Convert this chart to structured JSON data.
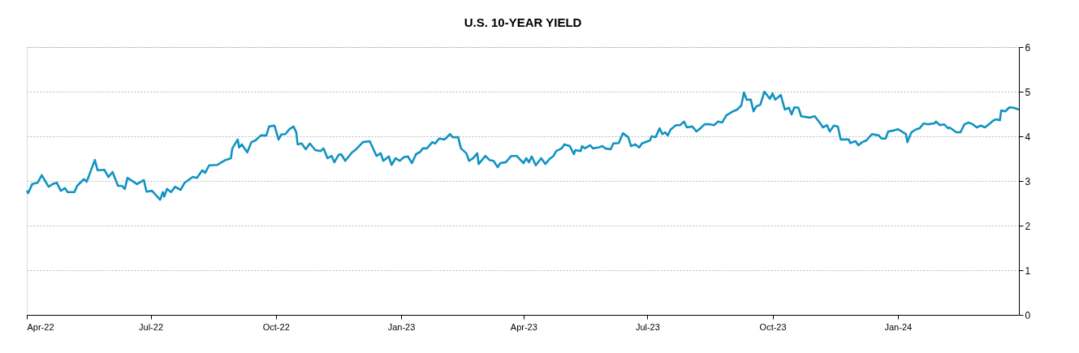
{
  "chart_data": {
    "type": "line",
    "title": "U.S. 10-YEAR YIELD",
    "x": [
      "2022-04-01",
      "2022-04-02",
      "2022-04-05",
      "2022-04-09",
      "2022-04-12",
      "2022-04-17",
      "2022-04-20",
      "2022-04-23",
      "2022-04-26",
      "2022-04-29",
      "2022-05-01",
      "2022-05-06",
      "2022-05-08",
      "2022-05-13",
      "2022-05-15",
      "2022-05-21",
      "2022-05-23",
      "2022-05-28",
      "2022-05-31",
      "2022-06-03",
      "2022-06-07",
      "2022-06-10",
      "2022-06-12",
      "2022-06-14",
      "2022-06-21",
      "2022-06-26",
      "2022-06-28",
      "2022-07-02",
      "2022-07-08",
      "2022-07-10",
      "2022-07-11",
      "2022-07-13",
      "2022-07-16",
      "2022-07-19",
      "2022-07-23",
      "2022-07-26",
      "2022-08-01",
      "2022-08-04",
      "2022-08-08",
      "2022-08-10",
      "2022-08-13",
      "2022-08-19",
      "2022-08-25",
      "2022-08-29",
      "2022-08-30",
      "2022-09-03",
      "2022-09-04",
      "2022-09-06",
      "2022-09-10",
      "2022-09-13",
      "2022-09-16",
      "2022-09-20",
      "2022-09-24",
      "2022-09-26",
      "2022-09-30",
      "2022-10-03",
      "2022-10-05",
      "2022-10-08",
      "2022-10-11",
      "2022-10-14",
      "2022-10-16",
      "2022-10-17",
      "2022-10-20",
      "2022-10-23",
      "2022-10-26",
      "2022-10-30",
      "2022-11-03",
      "2022-11-05",
      "2022-11-08",
      "2022-11-11",
      "2022-11-13",
      "2022-11-16",
      "2022-11-18",
      "2022-11-21",
      "2022-11-26",
      "2022-11-29",
      "2022-12-04",
      "2022-12-09",
      "2022-12-12",
      "2022-12-14",
      "2022-12-17",
      "2022-12-19",
      "2022-12-23",
      "2022-12-25",
      "2022-12-28",
      "2022-12-31",
      "2023-01-03",
      "2023-01-06",
      "2023-01-09",
      "2023-01-12",
      "2023-01-15",
      "2023-01-17",
      "2023-01-20",
      "2023-01-24",
      "2023-01-26",
      "2023-01-29",
      "2023-02-02",
      "2023-02-03",
      "2023-02-06",
      "2023-02-08",
      "2023-02-12",
      "2023-02-14",
      "2023-02-18",
      "2023-02-20",
      "2023-02-23",
      "2023-02-26",
      "2023-02-27",
      "2023-03-04",
      "2023-03-07",
      "2023-03-10",
      "2023-03-13",
      "2023-03-15",
      "2023-03-19",
      "2023-03-23",
      "2023-03-27",
      "2023-04-01",
      "2023-04-03",
      "2023-04-05",
      "2023-04-07",
      "2023-04-10",
      "2023-04-14",
      "2023-04-17",
      "2023-04-20",
      "2023-04-23",
      "2023-04-25",
      "2023-04-29",
      "2023-05-01",
      "2023-05-05",
      "2023-05-08",
      "2023-05-09",
      "2023-05-13",
      "2023-05-14",
      "2023-05-16",
      "2023-05-20",
      "2023-05-22",
      "2023-05-26",
      "2023-05-29",
      "2023-05-31",
      "2023-06-04",
      "2023-06-06",
      "2023-06-10",
      "2023-06-13",
      "2023-06-17",
      "2023-06-19",
      "2023-06-22",
      "2023-06-25",
      "2023-06-27",
      "2023-07-03",
      "2023-07-04",
      "2023-07-07",
      "2023-07-10",
      "2023-07-12",
      "2023-07-14",
      "2023-07-16",
      "2023-07-18",
      "2023-07-22",
      "2023-07-25",
      "2023-07-28",
      "2023-07-30",
      "2023-08-03",
      "2023-08-06",
      "2023-08-09",
      "2023-08-12",
      "2023-08-16",
      "2023-08-19",
      "2023-08-22",
      "2023-08-25",
      "2023-08-28",
      "2023-09-02",
      "2023-09-05",
      "2023-09-08",
      "2023-09-10",
      "2023-09-12",
      "2023-09-15",
      "2023-09-17",
      "2023-09-19",
      "2023-09-22",
      "2023-09-25",
      "2023-09-29",
      "2023-10-01",
      "2023-10-03",
      "2023-10-07",
      "2023-10-10",
      "2023-10-13",
      "2023-10-15",
      "2023-10-17",
      "2023-10-20",
      "2023-10-22",
      "2023-10-28",
      "2023-11-01",
      "2023-11-05",
      "2023-11-07",
      "2023-11-10",
      "2023-11-12",
      "2023-11-15",
      "2023-11-18",
      "2023-11-20",
      "2023-11-26",
      "2023-11-27",
      "2023-12-01",
      "2023-12-03",
      "2023-12-06",
      "2023-12-09",
      "2023-12-13",
      "2023-12-18",
      "2023-12-20",
      "2023-12-23",
      "2023-12-25",
      "2023-12-29",
      "2024-01-01",
      "2024-01-05",
      "2024-01-07",
      "2024-01-08",
      "2024-01-11",
      "2024-01-14",
      "2024-01-17",
      "2024-01-20",
      "2024-01-23",
      "2024-01-28",
      "2024-01-29",
      "2024-02-01",
      "2024-02-04",
      "2024-02-07",
      "2024-02-08",
      "2024-02-13",
      "2024-02-16",
      "2024-02-19",
      "2024-02-22",
      "2024-02-25",
      "2024-02-28",
      "2024-03-02",
      "2024-03-05",
      "2024-03-08",
      "2024-03-11",
      "2024-03-13",
      "2024-03-16",
      "2024-03-17",
      "2024-03-20",
      "2024-03-23",
      "2024-03-26",
      "2024-03-30"
    ],
    "series": [
      {
        "color": "#1193c1",
        "values": [
          2.78,
          2.73,
          2.93,
          2.96,
          3.13,
          2.87,
          2.93,
          2.96,
          2.78,
          2.84,
          2.75,
          2.75,
          2.89,
          3.04,
          2.98,
          3.47,
          3.24,
          3.25,
          3.09,
          3.2,
          2.89,
          2.89,
          2.82,
          3.07,
          2.93,
          3.02,
          2.76,
          2.78,
          2.58,
          2.75,
          2.65,
          2.82,
          2.75,
          2.87,
          2.8,
          2.96,
          3.09,
          3.07,
          3.24,
          3.18,
          3.35,
          3.36,
          3.47,
          3.51,
          3.73,
          3.93,
          3.75,
          3.82,
          3.64,
          3.87,
          3.91,
          4.02,
          4.02,
          4.22,
          4.24,
          3.93,
          4.04,
          4.05,
          4.16,
          4.22,
          4.09,
          3.82,
          3.84,
          3.71,
          3.84,
          3.69,
          3.67,
          3.73,
          3.51,
          3.56,
          3.42,
          3.58,
          3.6,
          3.45,
          3.64,
          3.71,
          3.87,
          3.89,
          3.69,
          3.56,
          3.62,
          3.45,
          3.55,
          3.36,
          3.51,
          3.45,
          3.53,
          3.55,
          3.4,
          3.6,
          3.65,
          3.73,
          3.73,
          3.87,
          3.84,
          3.95,
          3.93,
          3.96,
          4.05,
          3.98,
          3.98,
          3.73,
          3.62,
          3.45,
          3.51,
          3.62,
          3.38,
          3.56,
          3.47,
          3.45,
          3.31,
          3.4,
          3.42,
          3.56,
          3.56,
          3.4,
          3.51,
          3.42,
          3.55,
          3.35,
          3.51,
          3.38,
          3.49,
          3.56,
          3.67,
          3.73,
          3.82,
          3.78,
          3.6,
          3.69,
          3.67,
          3.78,
          3.73,
          3.8,
          3.73,
          3.75,
          3.78,
          3.73,
          3.71,
          3.84,
          3.85,
          4.07,
          3.98,
          3.78,
          3.82,
          3.75,
          3.84,
          3.91,
          4.0,
          3.98,
          4.18,
          4.05,
          4.09,
          4.02,
          4.15,
          4.25,
          4.25,
          4.33,
          4.2,
          4.22,
          4.11,
          4.18,
          4.27,
          4.27,
          4.25,
          4.33,
          4.31,
          4.47,
          4.56,
          4.6,
          4.69,
          4.98,
          4.82,
          4.82,
          4.56,
          4.67,
          4.71,
          5.0,
          4.84,
          4.96,
          4.82,
          4.93,
          4.6,
          4.64,
          4.49,
          4.65,
          4.64,
          4.45,
          4.42,
          4.45,
          4.29,
          4.2,
          4.25,
          4.11,
          4.24,
          4.22,
          3.93,
          3.93,
          3.85,
          3.89,
          3.8,
          3.87,
          3.91,
          4.05,
          4.02,
          3.95,
          3.95,
          4.11,
          4.13,
          4.16,
          4.09,
          4.05,
          3.87,
          4.09,
          4.15,
          4.18,
          4.29,
          4.27,
          4.29,
          4.33,
          4.25,
          4.27,
          4.18,
          4.2,
          4.09,
          4.09,
          4.27,
          4.31,
          4.27,
          4.2,
          4.24,
          4.2,
          4.27,
          4.35,
          4.38,
          4.36,
          4.58,
          4.56,
          4.65,
          4.64,
          4.6
        ]
      }
    ],
    "xlim": [
      "2022-04-01",
      "2024-03-30"
    ],
    "xticks": [
      {
        "value": "2022-04-01",
        "label": "Apr-22"
      },
      {
        "value": "2022-07-01",
        "label": "Jul-22"
      },
      {
        "value": "2022-10-01",
        "label": "Oct-22"
      },
      {
        "value": "2023-01-01",
        "label": "Jan-23"
      },
      {
        "value": "2023-04-01",
        "label": "Apr-23"
      },
      {
        "value": "2023-07-01",
        "label": "Jul-23"
      },
      {
        "value": "2023-10-01",
        "label": "Oct-23"
      },
      {
        "value": "2024-01-01",
        "label": "Jan-24"
      }
    ],
    "ylim": [
      0,
      6
    ],
    "yticks": [
      0,
      1,
      2,
      3,
      4,
      5,
      6
    ],
    "grid": "y",
    "line_style": "solid",
    "marker": "none"
  }
}
